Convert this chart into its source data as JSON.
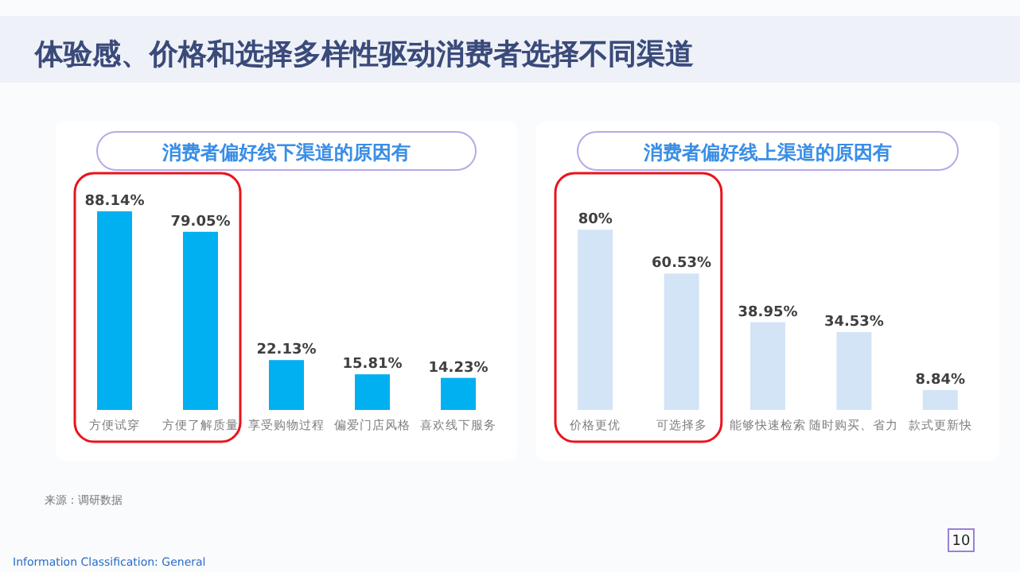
{
  "chart_data": [
    {
      "type": "bar",
      "title": "消费者偏好线下渠道的原因有",
      "categories": [
        "方便试穿",
        "方便了解质量",
        "享受购物过程",
        "偏爱门店风格",
        "喜欢线下服务"
      ],
      "values": [
        88.14,
        79.05,
        22.13,
        15.81,
        14.23
      ],
      "value_labels": [
        "88.14%",
        "79.05%",
        "22.13%",
        "15.81%",
        "14.23%"
      ],
      "color": "#00b0f0",
      "annotations": [
        "体验感、价格和选择多样性驱动消费者选择不同渠道",
        "来源：调研数据",
        "Information Classification: General",
        "10"
      ]
    },
    {
      "type": "bar",
      "title": "消费者偏好线上渠道的原因有",
      "categories": [
        "价格更优",
        "可选择多",
        "能够快速检索",
        "随时购买、省力",
        "款式更新快"
      ],
      "values": [
        80,
        60.53,
        38.95,
        34.53,
        8.84
      ],
      "value_labels": [
        "80%",
        "60.53%",
        "38.95%",
        "34.53%",
        "8.84%"
      ],
      "color": "#d3e4f7"
    }
  ]
}
